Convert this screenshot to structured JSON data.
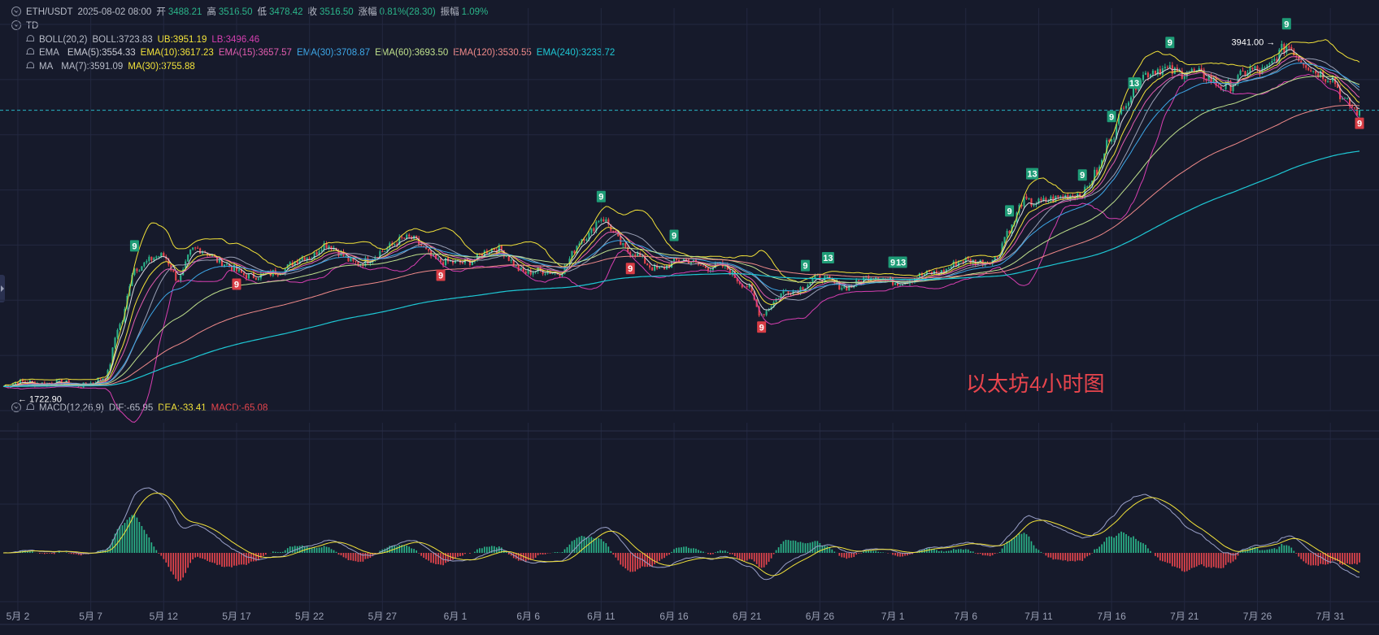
{
  "header": {
    "symbol": "ETH/USDT",
    "datetime": "2025-08-02 08:00",
    "open_label": "开",
    "open": "3488.21",
    "high_label": "高",
    "high": "3516.50",
    "low_label": "低",
    "low": "3478.42",
    "close_label": "收",
    "close": "3516.50",
    "change_label": "涨幅",
    "change": "0.81%(28.30)",
    "amplitude_label": "振幅",
    "amplitude": "1.09%"
  },
  "indicators": {
    "td": "TD",
    "boll": {
      "name": "BOLL(20,2)",
      "mid": "BOLL:3723.83",
      "ub": "UB:3951.19",
      "lb": "LB:3496.46"
    },
    "ema": {
      "name": "EMA",
      "e5": "EMA(5):3554.33",
      "e10": "EMA(10):3617.23",
      "e15": "EMA(15):3657.57",
      "e30": "EMA(30):3708.87",
      "e60": "EMA(60):3693.50",
      "e120": "EMA(120):3530.55",
      "e240": "EMA(240):3233.72"
    },
    "ma": {
      "name": "MA",
      "m7": "MA(7):3591.09",
      "m30": "MA(30):3755.88"
    },
    "macd": {
      "name": "MACD(12,26,9)",
      "dif": "DIF:-65.95",
      "dea": "DEA:-33.41",
      "macd": "MACD:-65.08"
    }
  },
  "colors": {
    "background": "#161a2b",
    "grid": "#232840",
    "up": "#2bb58a",
    "down": "#e8454d",
    "boll_mid": "#9aa0b5",
    "ub": "#f2e23a",
    "lb": "#d63fb1",
    "ema5": "#d9d9e0",
    "ema10": "#f2e23a",
    "ema15": "#e35db0",
    "ema30": "#3da7e8",
    "ema60": "#bfe08c",
    "ema120": "#f08a8a",
    "ema240": "#1ec7d4",
    "ma7": "#9aa0b5",
    "ma30": "#f2e23a",
    "dif": "#9aa0c8",
    "dea": "#f2e23a",
    "macd_label": "#e8454d"
  },
  "annotations": {
    "max_label": "3941.00",
    "min_label": "1722.90",
    "watermark": "以太坊4小时图"
  },
  "chart_data": {
    "type": "candlestick",
    "timeframe": "4h",
    "symbol": "ETH/USDT",
    "x_ticks": [
      "5月 2",
      "5月 7",
      "5月 12",
      "5月 17",
      "5月 22",
      "5月 27",
      "6月 1",
      "6月 6",
      "6月 11",
      "6月 16",
      "6月 21",
      "6月 26",
      "7月 1",
      "7月 6",
      "7月 11",
      "7月 16",
      "7月 21",
      "7月 26",
      "7月 31"
    ],
    "price_range": [
      1650,
      4050
    ],
    "current_price_line": 3516.5,
    "period_high": 3941.0,
    "period_low": 1722.9,
    "close_series": [
      {
        "date": "5月 1",
        "close": 1800
      },
      {
        "date": "5月 3",
        "close": 1830
      },
      {
        "date": "5月 6",
        "close": 1810
      },
      {
        "date": "5月 8",
        "close": 1850
      },
      {
        "date": "5月 9",
        "close": 2180
      },
      {
        "date": "5月 10",
        "close": 2550
      },
      {
        "date": "5月 12",
        "close": 2600
      },
      {
        "date": "5月 13",
        "close": 2480
      },
      {
        "date": "5月 14",
        "close": 2650
      },
      {
        "date": "5月 16",
        "close": 2580
      },
      {
        "date": "5月 18",
        "close": 2470
      },
      {
        "date": "5月 20",
        "close": 2530
      },
      {
        "date": "5月 22",
        "close": 2600
      },
      {
        "date": "5月 23",
        "close": 2700
      },
      {
        "date": "5月 25",
        "close": 2560
      },
      {
        "date": "5月 27",
        "close": 2640
      },
      {
        "date": "5月 29",
        "close": 2730
      },
      {
        "date": "5月 31",
        "close": 2560
      },
      {
        "date": "6月 2",
        "close": 2590
      },
      {
        "date": "6月 4",
        "close": 2650
      },
      {
        "date": "6月 6",
        "close": 2500
      },
      {
        "date": "6月 8",
        "close": 2520
      },
      {
        "date": "6月 10",
        "close": 2720
      },
      {
        "date": "6月 11",
        "close": 2860
      },
      {
        "date": "6月 13",
        "close": 2620
      },
      {
        "date": "6月 15",
        "close": 2540
      },
      {
        "date": "6月 17",
        "close": 2580
      },
      {
        "date": "6月 19",
        "close": 2540
      },
      {
        "date": "6月 21",
        "close": 2440
      },
      {
        "date": "6月 22",
        "close": 2250
      },
      {
        "date": "6月 24",
        "close": 2410
      },
      {
        "date": "6月 26",
        "close": 2460
      },
      {
        "date": "6月 28",
        "close": 2430
      },
      {
        "date": "6月 30",
        "close": 2480
      },
      {
        "date": "7月 2",
        "close": 2450
      },
      {
        "date": "7月 4",
        "close": 2520
      },
      {
        "date": "7月 6",
        "close": 2570
      },
      {
        "date": "7月 8",
        "close": 2600
      },
      {
        "date": "7月 9",
        "close": 2760
      },
      {
        "date": "7月 10",
        "close": 2960
      },
      {
        "date": "7月 12",
        "close": 2950
      },
      {
        "date": "7月 14",
        "close": 3020
      },
      {
        "date": "7月 15",
        "close": 3120
      },
      {
        "date": "7月 16",
        "close": 3350
      },
      {
        "date": "7月 17",
        "close": 3600
      },
      {
        "date": "7月 18",
        "close": 3720
      },
      {
        "date": "7月 20",
        "close": 3780
      },
      {
        "date": "7月 21",
        "close": 3760
      },
      {
        "date": "7月 22",
        "close": 3720
      },
      {
        "date": "7月 24",
        "close": 3680
      },
      {
        "date": "7月 26",
        "close": 3760
      },
      {
        "date": "7月 28",
        "close": 3900
      },
      {
        "date": "7月 29",
        "close": 3820
      },
      {
        "date": "7月 30",
        "close": 3780
      },
      {
        "date": "7月 31",
        "close": 3720
      },
      {
        "date": "8月 1",
        "close": 3550
      },
      {
        "date": "8月 2",
        "close": 3516.5
      }
    ],
    "td_markers": [
      {
        "date": "5月 10",
        "label": "9",
        "type": "sell"
      },
      {
        "date": "5月 17",
        "label": "9",
        "type": "buy"
      },
      {
        "date": "5月 31",
        "label": "9",
        "type": "buy"
      },
      {
        "date": "6月 11",
        "label": "9",
        "type": "sell"
      },
      {
        "date": "6月 13",
        "label": "9",
        "type": "buy"
      },
      {
        "date": "6月 16",
        "label": "9",
        "type": "sell"
      },
      {
        "date": "6月 22",
        "label": "9",
        "type": "buy"
      },
      {
        "date": "6月 25",
        "label": "9",
        "type": "sell"
      },
      {
        "date": "6月 26",
        "label": "13",
        "type": "sell"
      },
      {
        "date": "7月 1",
        "label": "9",
        "type": "sell"
      },
      {
        "date": "7月 1",
        "label": "13",
        "type": "sell"
      },
      {
        "date": "7月 9",
        "label": "9",
        "type": "sell"
      },
      {
        "date": "7月 10",
        "label": "13",
        "type": "sell"
      },
      {
        "date": "7月 14",
        "label": "9",
        "type": "sell"
      },
      {
        "date": "7月 16",
        "label": "9",
        "type": "sell"
      },
      {
        "date": "7月 17",
        "label": "13",
        "type": "sell"
      },
      {
        "date": "7月 20",
        "label": "9",
        "type": "sell"
      },
      {
        "date": "7月 28",
        "label": "9",
        "type": "sell"
      },
      {
        "date": "8月 2",
        "label": "9",
        "type": "buy"
      }
    ],
    "macd_current": {
      "dif": -65.95,
      "dea": -33.41,
      "macd": -65.08
    }
  }
}
